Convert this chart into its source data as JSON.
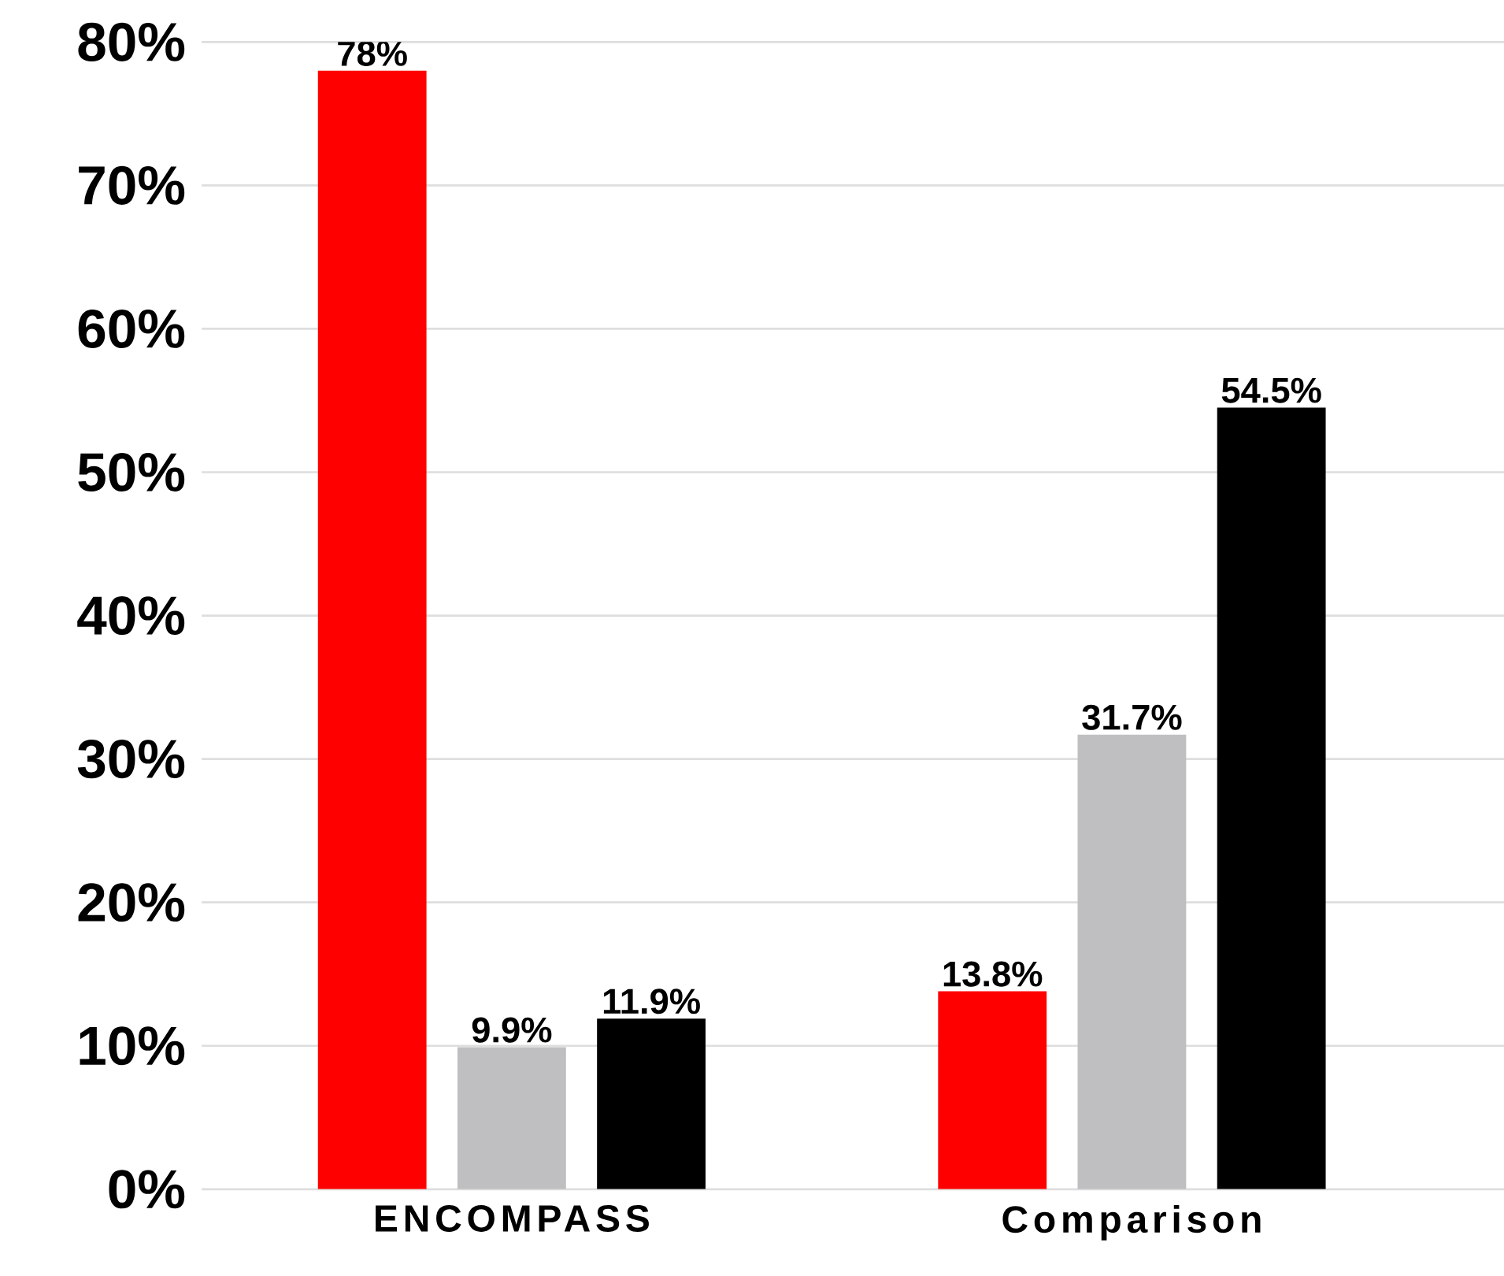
{
  "chart_data": {
    "type": "bar",
    "categories": [
      "ENCOMPASS",
      "Comparison"
    ],
    "series": [
      {
        "color": "#ff0000",
        "values": [
          78,
          13.8
        ],
        "value_labels": [
          "78%",
          "13.8%"
        ]
      },
      {
        "color": "#bfbfc1",
        "values": [
          9.9,
          31.7
        ],
        "value_labels": [
          "9.9%",
          "31.7%"
        ]
      },
      {
        "color": "#000000",
        "values": [
          11.9,
          54.5
        ],
        "value_labels": [
          "11.9%",
          "54.5%"
        ]
      }
    ],
    "ylim": [
      0,
      80
    ],
    "yticks": [
      {
        "value": 0,
        "label": "0%"
      },
      {
        "value": 10,
        "label": "10%"
      },
      {
        "value": 20,
        "label": "20%"
      },
      {
        "value": 30,
        "label": "30%"
      },
      {
        "value": 40,
        "label": "40%"
      },
      {
        "value": 50,
        "label": "50%"
      },
      {
        "value": 60,
        "label": "60%"
      },
      {
        "value": 70,
        "label": "70%"
      },
      {
        "value": 80,
        "label": "80%"
      }
    ],
    "grid": "y"
  }
}
